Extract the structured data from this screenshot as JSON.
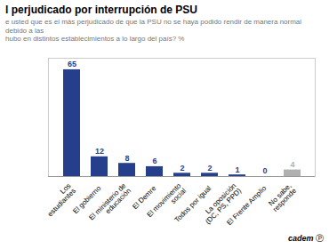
{
  "chart_data": {
    "type": "bar",
    "title": "l perjudicado por interrupción de PSU",
    "subtitle": "e usted que es el más perjudicado de que la PSU no se haya podido rendir de manera normal debido a las\nhubo en distintos establecimientos a lo largo del país? %",
    "categories": [
      "Los\nestudiantes",
      "El gobierno",
      "El ministerio de\neducación",
      "El Demre",
      "El movimiento\nsocial",
      "Todos por igual",
      "La oposición\n(DC, PS, PPD)",
      "El Frente Amplio",
      "No sabe,\nresponde"
    ],
    "values": [
      65,
      12,
      8,
      6,
      2,
      2,
      1,
      0,
      4
    ],
    "colors": [
      "#253f8c",
      "#253f8c",
      "#253f8c",
      "#253f8c",
      "#253f8c",
      "#253f8c",
      "#253f8c",
      "#253f8c",
      "#b0b0b0"
    ],
    "ylim": [
      0,
      72
    ],
    "grid": false,
    "data_labels": true,
    "tick_labels": "x",
    "annotations": [
      "cadem",
      "Ⓟ"
    ]
  }
}
